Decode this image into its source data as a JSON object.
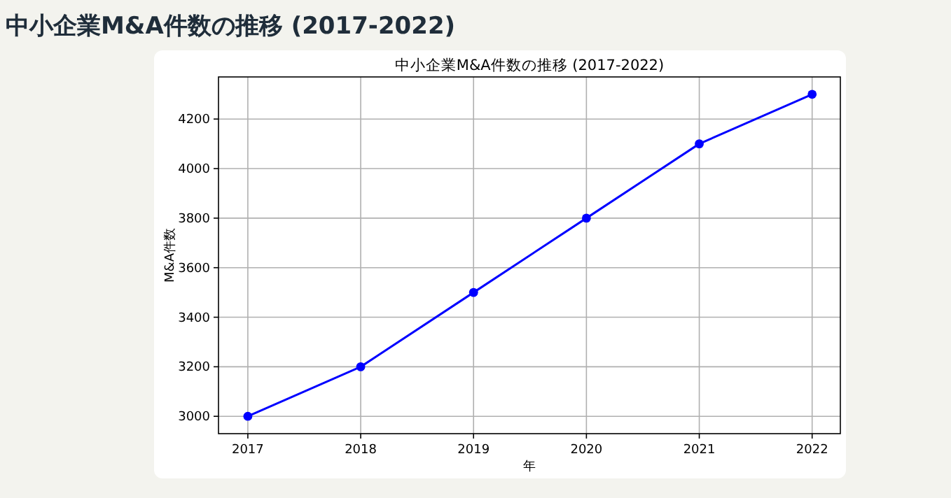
{
  "chart_data": {
    "type": "line",
    "title": "中小企業M&A件数の推移 (2017-2022)",
    "annotations": [
      "中小企業M&A件数の推移 (2017-2022)"
    ],
    "xlabel": "年",
    "ylabel": "M&A件数",
    "x": [
      2017,
      2018,
      2019,
      2020,
      2021,
      2022
    ],
    "series": [
      {
        "color": "#0000ff",
        "values": [
          3000,
          3200,
          3500,
          3800,
          4100,
          4300
        ]
      }
    ],
    "xlim": [
      2016.74,
      2022.25
    ],
    "xticks": [
      2017,
      2018,
      2019,
      2020,
      2021,
      2022
    ],
    "ylim": [
      2930,
      4370
    ],
    "yticks": [
      3000,
      3200,
      3400,
      3600,
      3800,
      4000,
      4200
    ],
    "grid": true,
    "marker": "circle",
    "line_style": "solid"
  }
}
